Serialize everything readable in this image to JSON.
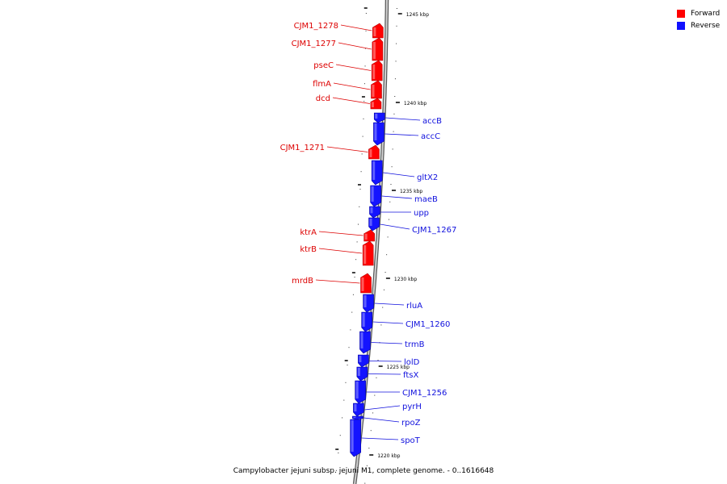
{
  "caption": "Campylobacter jejuni subsp. jejuni M1, complete genome. - 0..1616648",
  "legend": [
    {
      "label": "Forward",
      "color": "#ff0000"
    },
    {
      "label": "Reverse",
      "color": "#1010ff"
    }
  ],
  "colors": {
    "forward": "#ff0000",
    "reverse": "#1414ff",
    "backbone": "#9a9a9a"
  },
  "ticks": [
    "1245 kbp",
    "1240 kbp",
    "1235 kbp",
    "1230 kbp",
    "1225 kbp",
    "1220 kbp"
  ],
  "genes": [
    {
      "name": "CJM1_1278",
      "strand": "forward"
    },
    {
      "name": "CJM1_1277",
      "strand": "forward"
    },
    {
      "name": "pseC",
      "strand": "forward"
    },
    {
      "name": "flmA",
      "strand": "forward"
    },
    {
      "name": "dcd",
      "strand": "forward"
    },
    {
      "name": "accB",
      "strand": "reverse"
    },
    {
      "name": "accC",
      "strand": "reverse"
    },
    {
      "name": "CJM1_1271",
      "strand": "forward"
    },
    {
      "name": "gltX2",
      "strand": "reverse"
    },
    {
      "name": "maeB",
      "strand": "reverse"
    },
    {
      "name": "upp",
      "strand": "reverse"
    },
    {
      "name": "CJM1_1267",
      "strand": "reverse"
    },
    {
      "name": "ktrA",
      "strand": "forward"
    },
    {
      "name": "ktrB",
      "strand": "forward"
    },
    {
      "name": "mrdB",
      "strand": "forward"
    },
    {
      "name": "rluA",
      "strand": "reverse"
    },
    {
      "name": "CJM1_1260",
      "strand": "reverse"
    },
    {
      "name": "trmB",
      "strand": "reverse"
    },
    {
      "name": "lolD",
      "strand": "reverse"
    },
    {
      "name": "ftsX",
      "strand": "reverse"
    },
    {
      "name": "CJM1_1256",
      "strand": "reverse"
    },
    {
      "name": "pyrH",
      "strand": "reverse"
    },
    {
      "name": "rpoZ",
      "strand": "reverse"
    },
    {
      "name": "spoT",
      "strand": "reverse"
    }
  ]
}
